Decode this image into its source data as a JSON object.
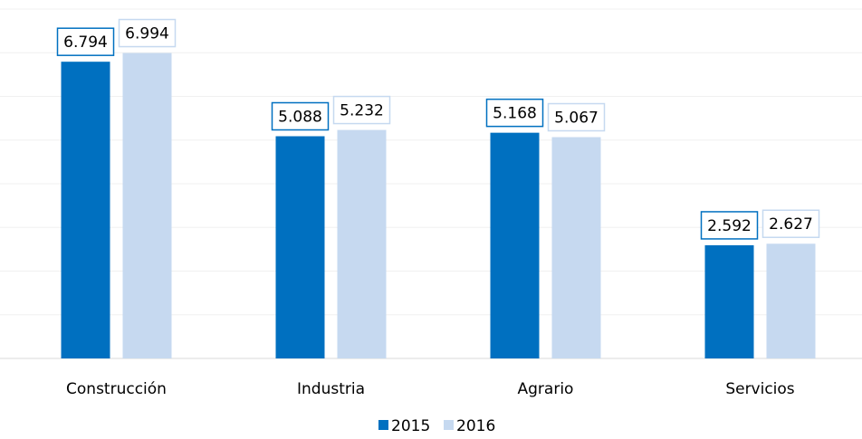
{
  "chart_data": {
    "type": "bar",
    "categories": [
      "Construcción",
      "Industria",
      "Agrario",
      "Servicios"
    ],
    "series": [
      {
        "name": "2015",
        "color": "#0070c0",
        "values": [
          6794,
          5088,
          5168,
          2592
        ],
        "value_labels": [
          "6.794",
          "5.088",
          "5.168",
          "2.592"
        ]
      },
      {
        "name": "2016",
        "color": "#c6d9f0",
        "values": [
          6994,
          5232,
          5067,
          2627
        ],
        "value_labels": [
          "6.994",
          "5.232",
          "5.067",
          "2.627"
        ]
      }
    ],
    "ylim": [
      0,
      8000
    ],
    "yticks": [
      0,
      1000,
      2000,
      3000,
      4000,
      5000,
      6000,
      7000,
      8000
    ],
    "grid": true,
    "legend": "bottom"
  }
}
